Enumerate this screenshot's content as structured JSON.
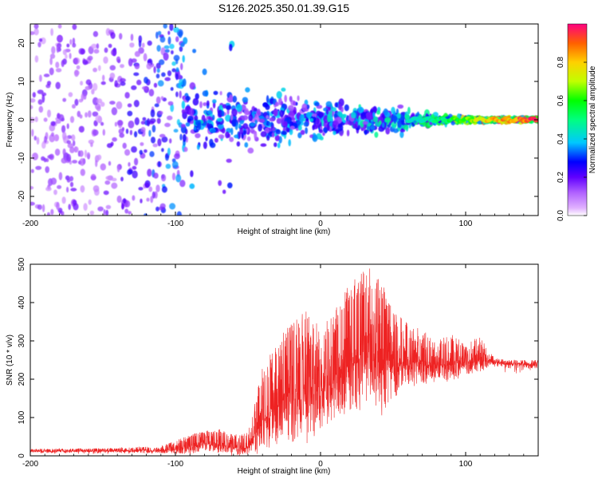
{
  "title": "S126.2025.350.01.39.G15",
  "colors": {
    "snr_line": "#ee2222",
    "background": "#ffffff",
    "axes": "#000000"
  },
  "colormap": "rainbow (magenta-blue-cyan-green-yellow-red)",
  "chart_data": [
    {
      "type": "heatmap",
      "xlabel": "Height of straight line (km)",
      "ylabel": "Frequency (Hz)",
      "xlim": [
        -200,
        150
      ],
      "ylim": [
        -25,
        25
      ],
      "x_ticks": [
        "-200",
        "-100",
        "0",
        "100"
      ],
      "y_ticks": [
        "-20",
        "-10",
        "0",
        "10",
        "20"
      ],
      "colorbar": {
        "label": "Normalized spectral amplitude",
        "range": [
          0,
          1
        ],
        "ticks": [
          "0.0",
          "0.2",
          "0.4",
          "0.6",
          "0.8"
        ]
      },
      "description_points": [
        {
          "height": -200,
          "freq_spread": 25,
          "amp": 0.15
        },
        {
          "height": -150,
          "freq_spread": 25,
          "amp": 0.15
        },
        {
          "height": -110,
          "freq_spread": 12,
          "amp": 0.3
        },
        {
          "height": -80,
          "freq_spread": 10,
          "amp": 0.35
        },
        {
          "height": -50,
          "freq_spread": 9,
          "amp": 0.3
        },
        {
          "height": 0,
          "freq_spread": 7,
          "amp": 0.35
        },
        {
          "height": 50,
          "freq_spread": 4,
          "amp": 0.4
        },
        {
          "height": 80,
          "freq_spread": 1.5,
          "amp": 0.5
        },
        {
          "height": 110,
          "freq_spread": 0.6,
          "amp": 0.75
        },
        {
          "height": 145,
          "freq_spread": 0.5,
          "amp": 0.95
        }
      ]
    },
    {
      "type": "line",
      "xlabel": "Height of straight line (km)",
      "ylabel": "SNR (10 * v/v)",
      "xlim": [
        -200,
        150
      ],
      "ylim": [
        0,
        500
      ],
      "x_ticks": [
        "-200",
        "-100",
        "0",
        "100"
      ],
      "y_ticks": [
        "0",
        "100",
        "200",
        "300",
        "400",
        "500"
      ],
      "series": [
        {
          "x": [
            -200,
            -150,
            -110,
            -100,
            -90,
            -80,
            -70,
            -60,
            -50,
            -40,
            -30,
            -20,
            -10,
            0,
            10,
            20,
            30,
            40,
            50,
            60,
            70,
            80,
            90,
            100,
            110,
            120,
            130,
            140,
            150
          ],
          "y": [
            12,
            13,
            14,
            18,
            22,
            35,
            30,
            20,
            25,
            90,
            130,
            150,
            160,
            170,
            200,
            240,
            260,
            250,
            230,
            245,
            240,
            235,
            240,
            245,
            250,
            245,
            240,
            240,
            238
          ],
          "peak": [
            18,
            20,
            25,
            40,
            55,
            65,
            70,
            55,
            60,
            230,
            300,
            350,
            380,
            340,
            380,
            450,
            500,
            480,
            380,
            350,
            340,
            300,
            320,
            300,
            310,
            255,
            250,
            250,
            250
          ],
          "low": [
            5,
            5,
            5,
            5,
            8,
            10,
            10,
            8,
            5,
            10,
            30,
            40,
            50,
            70,
            100,
            130,
            140,
            80,
            160,
            180,
            200,
            190,
            200,
            210,
            230,
            230,
            228,
            228,
            226
          ]
        }
      ]
    }
  ]
}
